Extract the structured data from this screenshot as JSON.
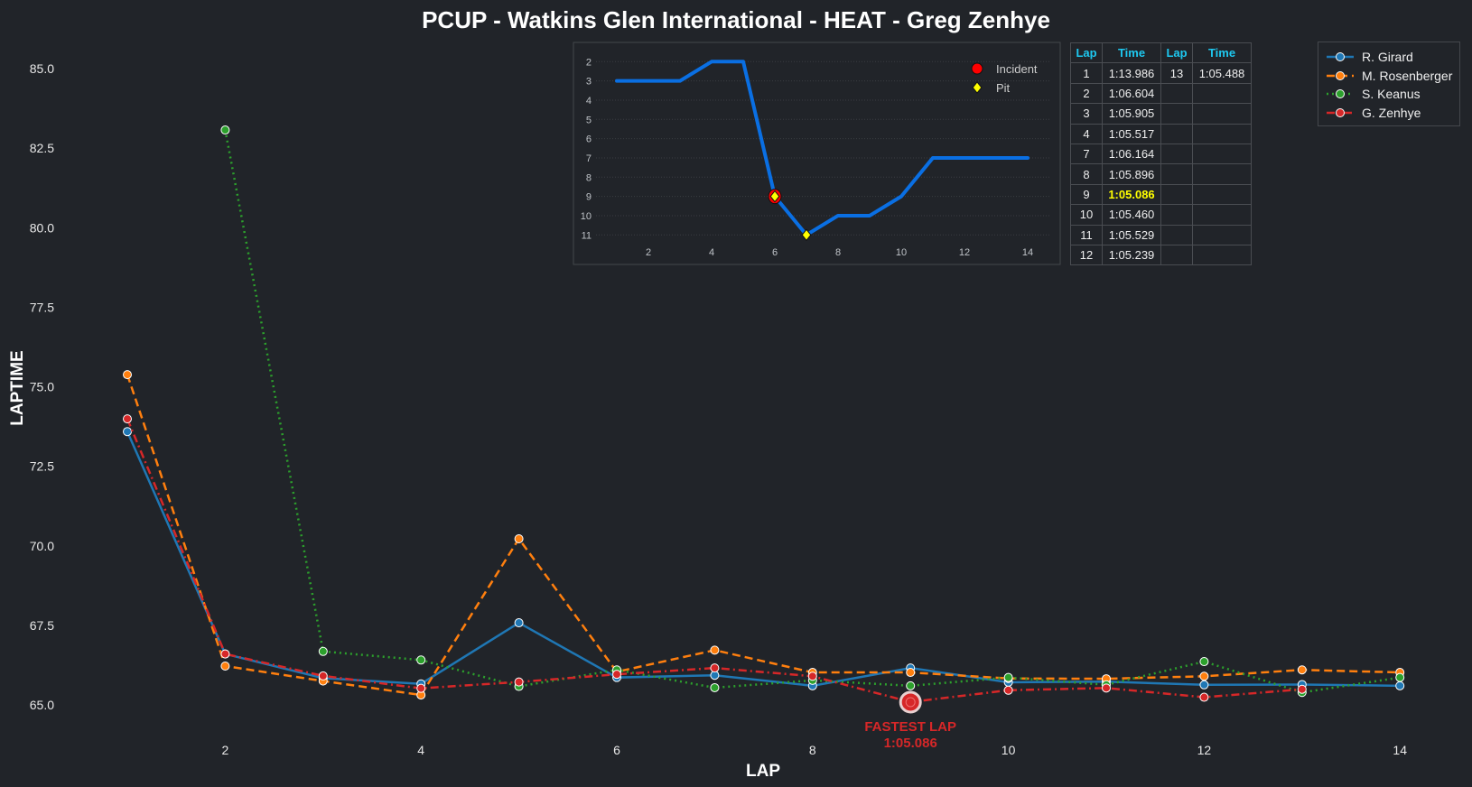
{
  "chart_data": [
    {
      "type": "line",
      "title": "PCUP - Watkins Glen International - HEAT - Greg Zenhye",
      "xlabel": "LAP",
      "ylabel": "LAPTIME",
      "ylim": [
        64.0,
        86.0
      ],
      "xlim": [
        0.6,
        14.5
      ],
      "yticks": [
        "65.0",
        "67.5",
        "70.0",
        "72.5",
        "75.0",
        "77.5",
        "80.0",
        "82.5",
        "85.0"
      ],
      "xticks": [
        "2",
        "4",
        "6",
        "8",
        "10",
        "12",
        "14"
      ],
      "grid": false,
      "legend_position": "top-right",
      "x": [
        1,
        2,
        3,
        4,
        5,
        6,
        7,
        8,
        9,
        10,
        11,
        12,
        13,
        14
      ],
      "series": [
        {
          "name": "R. Girard",
          "color": "#1f77b4",
          "dash": "solid",
          "values": [
            73.59,
            66.6,
            65.84,
            65.66,
            67.58,
            65.86,
            65.93,
            65.6,
            66.16,
            65.71,
            65.73,
            65.63,
            65.64,
            65.6
          ]
        },
        {
          "name": "M. Rosenberger",
          "color": "#ff7f0e",
          "dash": "dashed",
          "values": [
            75.38,
            66.22,
            65.75,
            65.31,
            70.22,
            66.04,
            66.72,
            66.02,
            66.02,
            65.83,
            65.82,
            65.9,
            66.1,
            66.02
          ]
        },
        {
          "name": "S. Keanus",
          "color": "#2ca02c",
          "dash": "dotted",
          "values": [
            null,
            83.07,
            66.68,
            66.41,
            65.58,
            66.1,
            65.54,
            65.77,
            65.6,
            65.86,
            65.63,
            66.36,
            65.39,
            65.86
          ]
        },
        {
          "name": "G. Zenhye",
          "color": "#d62728",
          "dash": "dashdot",
          "values": [
            73.99,
            66.6,
            65.91,
            65.52,
            65.72,
            65.96,
            66.16,
            65.9,
            65.09,
            65.46,
            65.53,
            65.24,
            65.49,
            null
          ]
        }
      ],
      "annotation": {
        "lap": 9,
        "value": 65.086,
        "label": "FASTEST LAP",
        "time": "1:05.086",
        "color": "#d62728"
      }
    },
    {
      "type": "line",
      "title": "",
      "ylim": [
        11.6,
        1.5
      ],
      "xticks": [
        "2",
        "4",
        "6",
        "8",
        "10",
        "12",
        "14"
      ],
      "yticks": [
        "2",
        "3",
        "4",
        "5",
        "6",
        "7",
        "8",
        "9",
        "10",
        "11"
      ],
      "x": [
        1,
        2,
        3,
        4,
        5,
        6,
        7,
        8,
        9,
        10,
        11,
        12,
        13,
        14
      ],
      "series": [
        {
          "name": "Position",
          "color": "#0a6fe3",
          "values": [
            3,
            3,
            3,
            2,
            2,
            9,
            11,
            10,
            10,
            9,
            7,
            7,
            7,
            7
          ]
        }
      ],
      "legend": [
        {
          "label": "Incident",
          "color": "#ff0000"
        },
        {
          "label": "Pit",
          "color": "#ffff00"
        }
      ],
      "incidents": [
        {
          "lap": 6,
          "position": 9
        }
      ],
      "pits": [
        {
          "lap": 6,
          "position": 9
        },
        {
          "lap": 7,
          "position": 11
        }
      ]
    }
  ],
  "lap_table": {
    "headers": [
      "Lap",
      "Time",
      "Lap",
      "Time"
    ],
    "rows": [
      [
        "1",
        "1:13.986",
        "13",
        "1:05.488"
      ],
      [
        "2",
        "1:06.604",
        "",
        ""
      ],
      [
        "3",
        "1:05.905",
        "",
        ""
      ],
      [
        "4",
        "1:05.517",
        "",
        ""
      ],
      [
        "7",
        "1:06.164",
        "",
        ""
      ],
      [
        "8",
        "1:05.896",
        "",
        ""
      ],
      [
        "9",
        "1:05.086",
        "",
        ""
      ],
      [
        "10",
        "1:05.460",
        "",
        ""
      ],
      [
        "11",
        "1:05.529",
        "",
        ""
      ],
      [
        "12",
        "1:05.239",
        "",
        ""
      ]
    ],
    "best_time": "1:05.086"
  }
}
